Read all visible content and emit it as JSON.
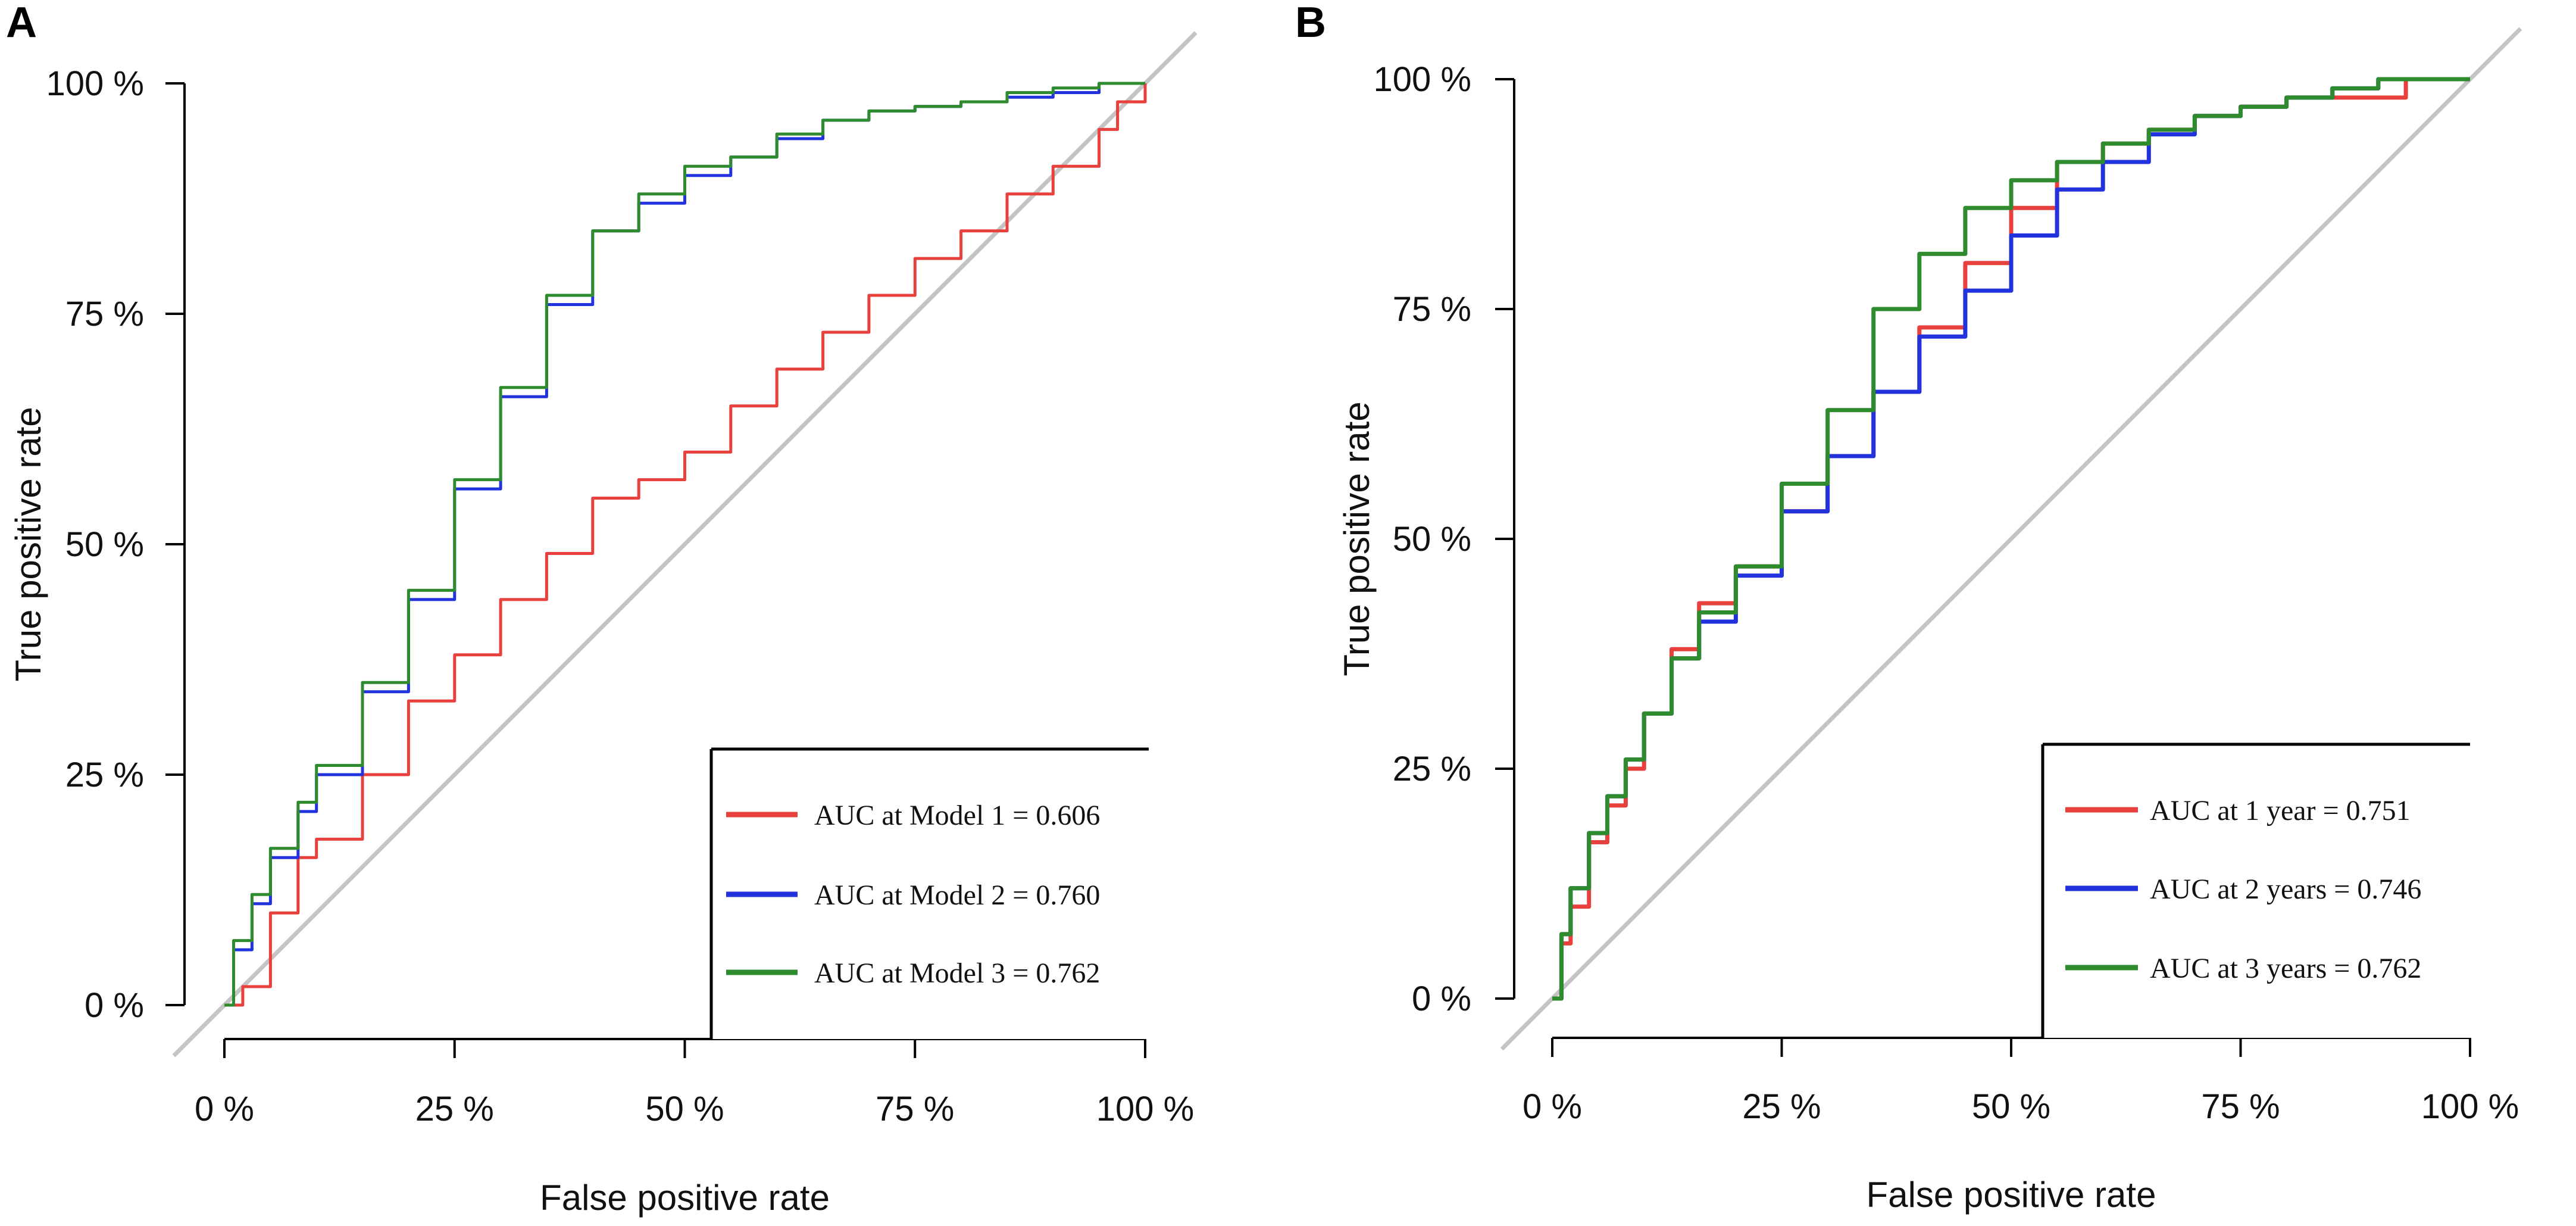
{
  "chart_data": [
    {
      "panel_label": "A",
      "type": "line",
      "xlabel": "False positive rate",
      "ylabel": "True positive rate",
      "xlim": [
        0,
        1
      ],
      "ylim": [
        0,
        1
      ],
      "x_ticks": [
        "0 %",
        "25 %",
        "50 %",
        "75 %",
        "100 %"
      ],
      "y_ticks": [
        "0 %",
        "25 %",
        "50 %",
        "75 %",
        "100 %"
      ],
      "grid": false,
      "legend_position": "bottom-right",
      "reference_line": "diagonal",
      "series": [
        {
          "name": "AUC at Model 1 = 0.606",
          "color": "#e8403c",
          "x": [
            0,
            0.02,
            0.05,
            0.08,
            0.1,
            0.15,
            0.2,
            0.25,
            0.3,
            0.35,
            0.4,
            0.45,
            0.5,
            0.55,
            0.6,
            0.65,
            0.7,
            0.75,
            0.8,
            0.85,
            0.9,
            0.95,
            0.97,
            1.0
          ],
          "y": [
            0,
            0.02,
            0.1,
            0.16,
            0.18,
            0.25,
            0.33,
            0.38,
            0.44,
            0.49,
            0.55,
            0.57,
            0.6,
            0.65,
            0.69,
            0.73,
            0.77,
            0.81,
            0.84,
            0.88,
            0.91,
            0.95,
            0.98,
            1.0
          ]
        },
        {
          "name": "AUC at Model 2 = 0.760",
          "color": "#2233dd",
          "x": [
            0,
            0.01,
            0.03,
            0.05,
            0.08,
            0.1,
            0.15,
            0.2,
            0.25,
            0.3,
            0.35,
            0.4,
            0.45,
            0.5,
            0.55,
            0.6,
            0.65,
            0.7,
            0.75,
            0.8,
            0.85,
            0.9,
            0.95,
            1.0
          ],
          "y": [
            0,
            0.06,
            0.11,
            0.16,
            0.21,
            0.25,
            0.34,
            0.44,
            0.56,
            0.66,
            0.76,
            0.84,
            0.87,
            0.9,
            0.92,
            0.94,
            0.96,
            0.97,
            0.975,
            0.98,
            0.985,
            0.99,
            1.0,
            1.0
          ]
        },
        {
          "name": "AUC at Model 3 = 0.762",
          "color": "#2e8b2e",
          "x": [
            0,
            0.01,
            0.03,
            0.05,
            0.08,
            0.1,
            0.15,
            0.2,
            0.25,
            0.3,
            0.35,
            0.4,
            0.45,
            0.5,
            0.55,
            0.6,
            0.65,
            0.7,
            0.75,
            0.8,
            0.85,
            0.9,
            0.95,
            1.0
          ],
          "y": [
            0,
            0.07,
            0.12,
            0.17,
            0.22,
            0.26,
            0.35,
            0.45,
            0.57,
            0.67,
            0.77,
            0.84,
            0.88,
            0.91,
            0.92,
            0.945,
            0.96,
            0.97,
            0.975,
            0.98,
            0.99,
            0.995,
            1.0,
            1.0
          ]
        }
      ]
    },
    {
      "panel_label": "B",
      "type": "line",
      "xlabel": "False positive rate",
      "ylabel": "True positive rate",
      "xlim": [
        0,
        1
      ],
      "ylim": [
        0,
        1
      ],
      "x_ticks": [
        "0 %",
        "25 %",
        "50 %",
        "75 %",
        "100 %"
      ],
      "y_ticks": [
        "0 %",
        "25 %",
        "50 %",
        "75 %",
        "100 %"
      ],
      "grid": false,
      "legend_position": "bottom-right",
      "reference_line": "diagonal",
      "series": [
        {
          "name": "AUC at 1 year = 0.751",
          "color": "#e8403c",
          "x": [
            0,
            0.01,
            0.02,
            0.04,
            0.06,
            0.08,
            0.1,
            0.13,
            0.16,
            0.2,
            0.25,
            0.3,
            0.35,
            0.4,
            0.45,
            0.5,
            0.55,
            0.6,
            0.65,
            0.7,
            0.75,
            0.8,
            0.85,
            0.9,
            0.93
          ],
          "y": [
            0,
            0.06,
            0.1,
            0.17,
            0.21,
            0.25,
            0.31,
            0.38,
            0.43,
            0.47,
            0.53,
            0.59,
            0.66,
            0.73,
            0.8,
            0.86,
            0.91,
            0.93,
            0.945,
            0.96,
            0.97,
            0.98,
            0.98,
            0.98,
            1.0
          ]
        },
        {
          "name": "AUC at 2 years = 0.746",
          "color": "#2233dd",
          "x": [
            0,
            0.01,
            0.02,
            0.04,
            0.06,
            0.08,
            0.1,
            0.13,
            0.16,
            0.2,
            0.25,
            0.3,
            0.35,
            0.4,
            0.45,
            0.5,
            0.55,
            0.6,
            0.65,
            0.7,
            0.75,
            0.8,
            0.85,
            0.9,
            0.95,
            1.0
          ],
          "y": [
            0,
            0.07,
            0.12,
            0.18,
            0.22,
            0.26,
            0.31,
            0.37,
            0.41,
            0.46,
            0.53,
            0.59,
            0.66,
            0.72,
            0.77,
            0.83,
            0.88,
            0.91,
            0.94,
            0.96,
            0.97,
            0.98,
            0.99,
            1.0,
            1.0,
            1.0
          ]
        },
        {
          "name": "AUC at 3 years = 0.762",
          "color": "#2e8b2e",
          "x": [
            0,
            0.01,
            0.02,
            0.04,
            0.06,
            0.08,
            0.1,
            0.13,
            0.16,
            0.2,
            0.25,
            0.3,
            0.35,
            0.4,
            0.45,
            0.5,
            0.55,
            0.6,
            0.65,
            0.7,
            0.75,
            0.8,
            0.85,
            0.9,
            0.95,
            1.0
          ],
          "y": [
            0,
            0.07,
            0.12,
            0.18,
            0.22,
            0.26,
            0.31,
            0.37,
            0.42,
            0.47,
            0.56,
            0.64,
            0.75,
            0.81,
            0.86,
            0.89,
            0.91,
            0.93,
            0.945,
            0.96,
            0.97,
            0.98,
            0.99,
            1.0,
            1.0,
            1.0
          ]
        }
      ]
    }
  ]
}
